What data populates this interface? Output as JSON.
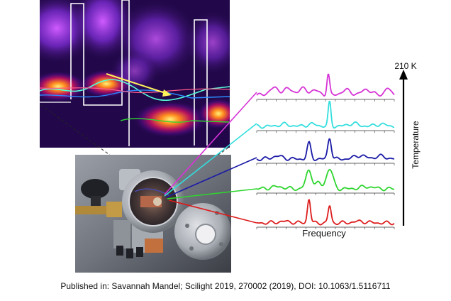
{
  "diagram": {
    "top_axis_label": "210 K",
    "vertical_axis_label": "Temperature",
    "horizontal_axis_label": "Frequency",
    "spectra": [
      {
        "color": "#d633d6"
      },
      {
        "color": "#33dede"
      },
      {
        "color": "#1a1aa6"
      },
      {
        "color": "#2ed62e"
      },
      {
        "color": "#dd1c1c"
      }
    ]
  },
  "caption": "Published in: Savannah Mandel; Scilight  2019, 270002 (2019), DOI: 10.1063/1.5116711"
}
